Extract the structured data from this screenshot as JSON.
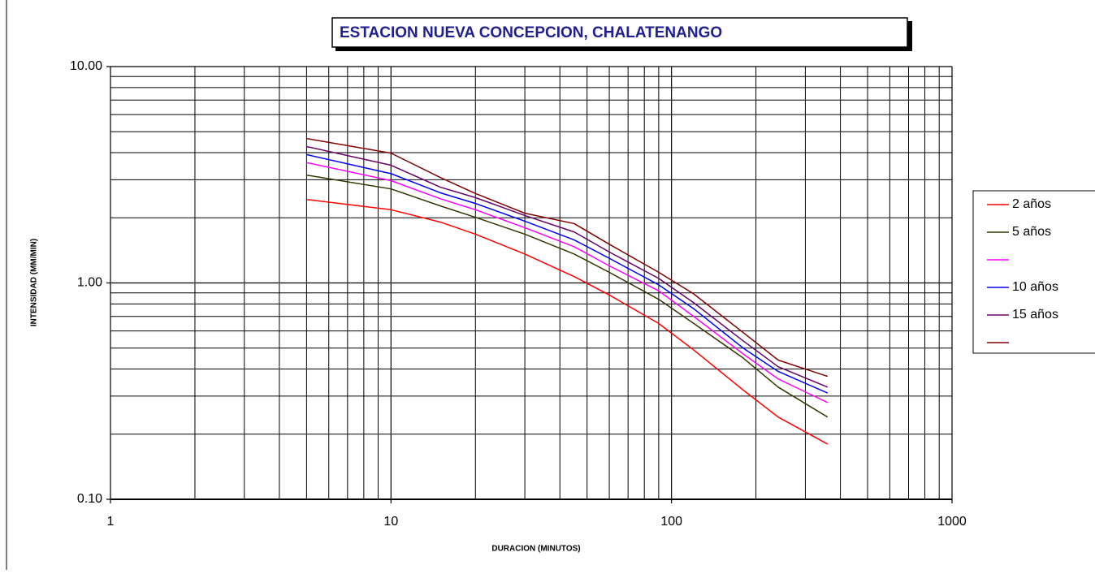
{
  "chart_data": {
    "type": "line",
    "title": "ESTACION NUEVA CONCEPCION, CHALATENANGO",
    "x_label": "DURACION (MINUTOS)",
    "y_label": "INTENSIDAD (MM/MIN)",
    "x_log": true,
    "y_log": true,
    "grid": true,
    "legend_position": "right",
    "x": [
      5,
      10,
      15,
      20,
      30,
      45,
      60,
      90,
      120,
      180,
      240,
      360
    ],
    "series": [
      {
        "name": "2 años",
        "color": "#ff0000",
        "values": [
          2.43,
          2.18,
          1.91,
          1.68,
          1.36,
          1.07,
          0.88,
          0.65,
          0.49,
          0.32,
          0.24,
          0.18
        ]
      },
      {
        "name": "5 años",
        "color": "#333300",
        "values": [
          3.15,
          2.72,
          2.27,
          2.01,
          1.68,
          1.36,
          1.12,
          0.84,
          0.65,
          0.45,
          0.33,
          0.24
        ]
      },
      {
        "name": null,
        "color": "#ff00ff",
        "values": [
          3.6,
          2.97,
          2.45,
          2.18,
          1.8,
          1.47,
          1.2,
          0.92,
          0.7,
          0.47,
          0.36,
          0.28
        ]
      },
      {
        "name": "10 años",
        "color": "#0000ff",
        "values": [
          3.92,
          3.2,
          2.61,
          2.33,
          1.93,
          1.58,
          1.3,
          0.98,
          0.76,
          0.5,
          0.39,
          0.31
        ]
      },
      {
        "name": "15 años",
        "color": "#660066",
        "values": [
          4.27,
          3.5,
          2.77,
          2.48,
          2.05,
          1.72,
          1.39,
          1.05,
          0.81,
          0.54,
          0.41,
          0.33
        ]
      },
      {
        "name": null,
        "color": "#800000",
        "values": [
          4.65,
          3.98,
          3.07,
          2.59,
          2.1,
          1.88,
          1.51,
          1.12,
          0.89,
          0.59,
          0.44,
          0.37
        ]
      }
    ],
    "xlim": [
      1,
      1000
    ],
    "xticks": [
      1,
      10,
      100,
      1000
    ],
    "x_minor_ticks": [
      2,
      3,
      4,
      5,
      6,
      7,
      8,
      9,
      20,
      30,
      40,
      50,
      60,
      70,
      80,
      90,
      200,
      300,
      400,
      500,
      600,
      700,
      800,
      900
    ],
    "ylim": [
      0.1,
      10
    ],
    "yticks": [
      {
        "value": 0.1,
        "label": "0.10"
      },
      {
        "value": 1,
        "label": "1.00"
      },
      {
        "value": 10,
        "label": "10.00"
      }
    ],
    "y_minor_ticks": [
      0.2,
      0.3,
      0.4,
      0.5,
      0.6,
      0.7,
      0.8,
      0.9,
      2,
      3,
      4,
      5,
      6,
      7,
      8,
      9
    ]
  }
}
